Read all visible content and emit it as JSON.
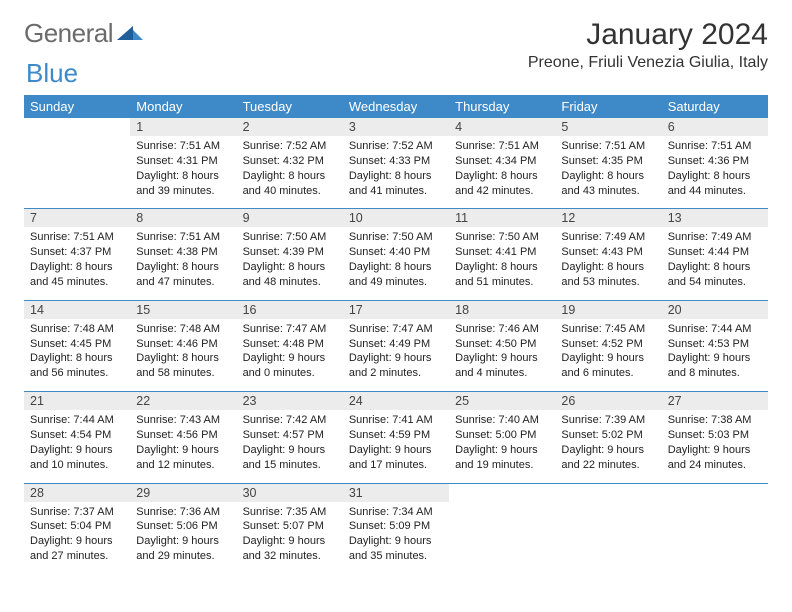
{
  "logo": {
    "text1": "General",
    "text2": "Blue"
  },
  "title": "January 2024",
  "location": "Preone, Friuli Venezia Giulia, Italy",
  "colors": {
    "header_bg": "#3e8ac8",
    "header_text": "#ffffff",
    "daynum_bg": "#ececec",
    "divider": "#3e8ac8",
    "body_text": "#222222",
    "logo_gray": "#6b6b6b",
    "logo_blue": "#3e8ac8"
  },
  "fonts": {
    "title_size": 30,
    "location_size": 16,
    "dow_size": 13,
    "daynum_size": 12.5,
    "cell_size": 11
  },
  "daysOfWeek": [
    "Sunday",
    "Monday",
    "Tuesday",
    "Wednesday",
    "Thursday",
    "Friday",
    "Saturday"
  ],
  "weeks": [
    [
      null,
      {
        "n": "1",
        "sr": "7:51 AM",
        "ss": "4:31 PM",
        "dl1": "8 hours",
        "dl2": "and 39 minutes."
      },
      {
        "n": "2",
        "sr": "7:52 AM",
        "ss": "4:32 PM",
        "dl1": "8 hours",
        "dl2": "and 40 minutes."
      },
      {
        "n": "3",
        "sr": "7:52 AM",
        "ss": "4:33 PM",
        "dl1": "8 hours",
        "dl2": "and 41 minutes."
      },
      {
        "n": "4",
        "sr": "7:51 AM",
        "ss": "4:34 PM",
        "dl1": "8 hours",
        "dl2": "and 42 minutes."
      },
      {
        "n": "5",
        "sr": "7:51 AM",
        "ss": "4:35 PM",
        "dl1": "8 hours",
        "dl2": "and 43 minutes."
      },
      {
        "n": "6",
        "sr": "7:51 AM",
        "ss": "4:36 PM",
        "dl1": "8 hours",
        "dl2": "and 44 minutes."
      }
    ],
    [
      {
        "n": "7",
        "sr": "7:51 AM",
        "ss": "4:37 PM",
        "dl1": "8 hours",
        "dl2": "and 45 minutes."
      },
      {
        "n": "8",
        "sr": "7:51 AM",
        "ss": "4:38 PM",
        "dl1": "8 hours",
        "dl2": "and 47 minutes."
      },
      {
        "n": "9",
        "sr": "7:50 AM",
        "ss": "4:39 PM",
        "dl1": "8 hours",
        "dl2": "and 48 minutes."
      },
      {
        "n": "10",
        "sr": "7:50 AM",
        "ss": "4:40 PM",
        "dl1": "8 hours",
        "dl2": "and 49 minutes."
      },
      {
        "n": "11",
        "sr": "7:50 AM",
        "ss": "4:41 PM",
        "dl1": "8 hours",
        "dl2": "and 51 minutes."
      },
      {
        "n": "12",
        "sr": "7:49 AM",
        "ss": "4:43 PM",
        "dl1": "8 hours",
        "dl2": "and 53 minutes."
      },
      {
        "n": "13",
        "sr": "7:49 AM",
        "ss": "4:44 PM",
        "dl1": "8 hours",
        "dl2": "and 54 minutes."
      }
    ],
    [
      {
        "n": "14",
        "sr": "7:48 AM",
        "ss": "4:45 PM",
        "dl1": "8 hours",
        "dl2": "and 56 minutes."
      },
      {
        "n": "15",
        "sr": "7:48 AM",
        "ss": "4:46 PM",
        "dl1": "8 hours",
        "dl2": "and 58 minutes."
      },
      {
        "n": "16",
        "sr": "7:47 AM",
        "ss": "4:48 PM",
        "dl1": "9 hours",
        "dl2": "and 0 minutes."
      },
      {
        "n": "17",
        "sr": "7:47 AM",
        "ss": "4:49 PM",
        "dl1": "9 hours",
        "dl2": "and 2 minutes."
      },
      {
        "n": "18",
        "sr": "7:46 AM",
        "ss": "4:50 PM",
        "dl1": "9 hours",
        "dl2": "and 4 minutes."
      },
      {
        "n": "19",
        "sr": "7:45 AM",
        "ss": "4:52 PM",
        "dl1": "9 hours",
        "dl2": "and 6 minutes."
      },
      {
        "n": "20",
        "sr": "7:44 AM",
        "ss": "4:53 PM",
        "dl1": "9 hours",
        "dl2": "and 8 minutes."
      }
    ],
    [
      {
        "n": "21",
        "sr": "7:44 AM",
        "ss": "4:54 PM",
        "dl1": "9 hours",
        "dl2": "and 10 minutes."
      },
      {
        "n": "22",
        "sr": "7:43 AM",
        "ss": "4:56 PM",
        "dl1": "9 hours",
        "dl2": "and 12 minutes."
      },
      {
        "n": "23",
        "sr": "7:42 AM",
        "ss": "4:57 PM",
        "dl1": "9 hours",
        "dl2": "and 15 minutes."
      },
      {
        "n": "24",
        "sr": "7:41 AM",
        "ss": "4:59 PM",
        "dl1": "9 hours",
        "dl2": "and 17 minutes."
      },
      {
        "n": "25",
        "sr": "7:40 AM",
        "ss": "5:00 PM",
        "dl1": "9 hours",
        "dl2": "and 19 minutes."
      },
      {
        "n": "26",
        "sr": "7:39 AM",
        "ss": "5:02 PM",
        "dl1": "9 hours",
        "dl2": "and 22 minutes."
      },
      {
        "n": "27",
        "sr": "7:38 AM",
        "ss": "5:03 PM",
        "dl1": "9 hours",
        "dl2": "and 24 minutes."
      }
    ],
    [
      {
        "n": "28",
        "sr": "7:37 AM",
        "ss": "5:04 PM",
        "dl1": "9 hours",
        "dl2": "and 27 minutes."
      },
      {
        "n": "29",
        "sr": "7:36 AM",
        "ss": "5:06 PM",
        "dl1": "9 hours",
        "dl2": "and 29 minutes."
      },
      {
        "n": "30",
        "sr": "7:35 AM",
        "ss": "5:07 PM",
        "dl1": "9 hours",
        "dl2": "and 32 minutes."
      },
      {
        "n": "31",
        "sr": "7:34 AM",
        "ss": "5:09 PM",
        "dl1": "9 hours",
        "dl2": "and 35 minutes."
      },
      null,
      null,
      null
    ]
  ],
  "labels": {
    "sunrise": "Sunrise: ",
    "sunset": "Sunset: ",
    "daylight": "Daylight: "
  }
}
